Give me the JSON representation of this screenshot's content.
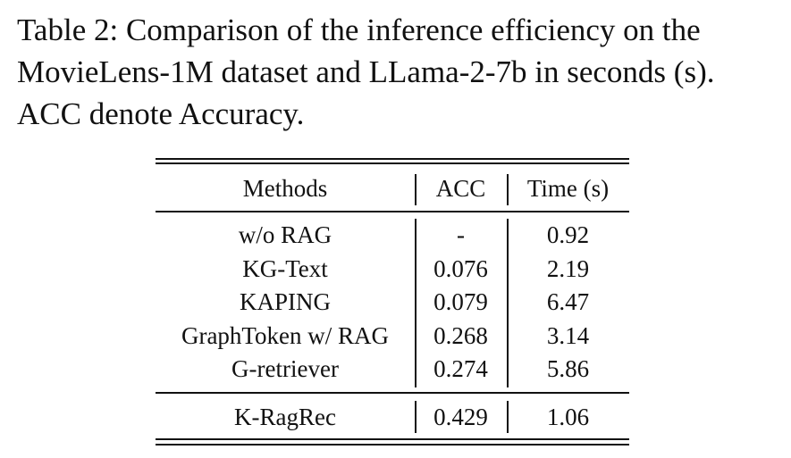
{
  "caption": {
    "line1": "Table 2: Comparison of the inference efficiency on the",
    "line2": "MovieLens-1M dataset and LLama-2-7b in seconds (s).",
    "line3": "ACC denote Accuracy."
  },
  "table": {
    "headers": [
      "Methods",
      "ACC",
      "Time (s)"
    ],
    "rows": [
      [
        "w/o RAG",
        "-",
        "0.92"
      ],
      [
        "KG-Text",
        "0.076",
        "2.19"
      ],
      [
        "KAPING",
        "0.079",
        "6.47"
      ],
      [
        "GraphToken w/ RAG",
        "0.268",
        "3.14"
      ],
      [
        "G-retriever",
        "0.274",
        "5.86"
      ],
      [
        "K-RagRec",
        "0.429",
        "1.06"
      ]
    ]
  }
}
